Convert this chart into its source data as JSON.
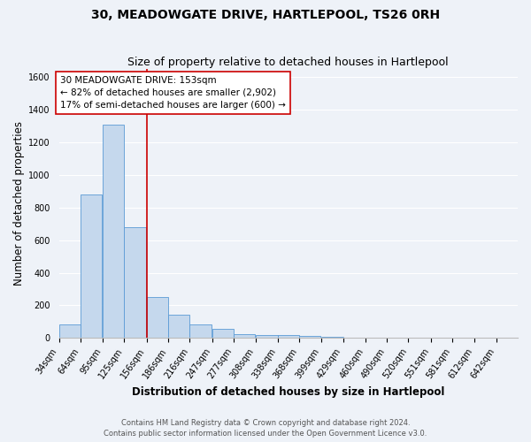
{
  "title": "30, MEADOWGATE DRIVE, HARTLEPOOL, TS26 0RH",
  "subtitle": "Size of property relative to detached houses in Hartlepool",
  "xlabel": "Distribution of detached houses by size in Hartlepool",
  "ylabel": "Number of detached properties",
  "bin_labels": [
    "34sqm",
    "64sqm",
    "95sqm",
    "125sqm",
    "156sqm",
    "186sqm",
    "216sqm",
    "247sqm",
    "277sqm",
    "308sqm",
    "338sqm",
    "368sqm",
    "399sqm",
    "429sqm",
    "460sqm",
    "490sqm",
    "520sqm",
    "551sqm",
    "581sqm",
    "612sqm",
    "642sqm"
  ],
  "bin_edges": [
    34,
    64,
    95,
    125,
    156,
    186,
    216,
    247,
    277,
    308,
    338,
    368,
    399,
    429,
    460,
    490,
    520,
    551,
    581,
    612,
    642
  ],
  "bar_heights": [
    85,
    880,
    1310,
    680,
    250,
    140,
    85,
    55,
    25,
    20,
    15,
    10,
    5,
    3,
    2,
    0,
    1,
    0,
    0,
    0
  ],
  "bar_color": "#c5d8ed",
  "bar_edge_color": "#5b9bd5",
  "vline_x": 156,
  "vline_color": "#cc0000",
  "annotation_line1": "30 MEADOWGATE DRIVE: 153sqm",
  "annotation_line2": "← 82% of detached houses are smaller (2,902)",
  "annotation_line3": "17% of semi-detached houses are larger (600) →",
  "annotation_box_color": "#ffffff",
  "annotation_box_edge_color": "#cc0000",
  "ylim": [
    0,
    1650
  ],
  "yticks": [
    0,
    200,
    400,
    600,
    800,
    1000,
    1200,
    1400,
    1600
  ],
  "footer_line1": "Contains HM Land Registry data © Crown copyright and database right 2024.",
  "footer_line2": "Contains public sector information licensed under the Open Government Licence v3.0.",
  "bg_color": "#eef2f8",
  "grid_color": "#ffffff",
  "title_fontsize": 10,
  "subtitle_fontsize": 9,
  "axis_label_fontsize": 8.5,
  "tick_fontsize": 7,
  "annotation_fontsize": 7.5,
  "footer_fontsize": 6
}
